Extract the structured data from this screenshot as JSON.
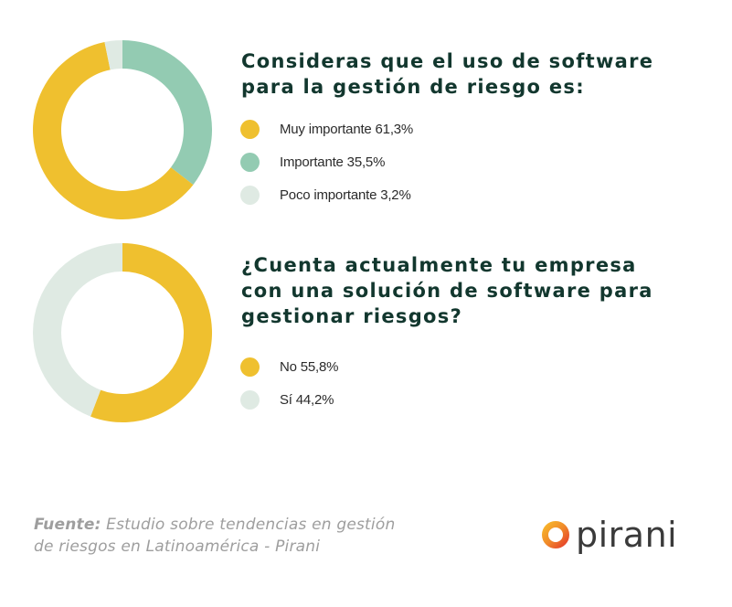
{
  "chart_data": [
    {
      "type": "pie",
      "variant": "donut",
      "title": "Consideras que el uso de software para la gestión de riesgo es:",
      "title_lines": [
        "Consideras que el uso de software",
        "para la gestión de riesgo es:"
      ],
      "categories": [
        "Muy importante",
        "Importante",
        "Poco importante"
      ],
      "values": [
        61.3,
        35.5,
        3.2
      ],
      "legend_labels": [
        "Muy importante 61,3%",
        "Importante 35,5%",
        "Poco importante 3,2%"
      ],
      "colors": [
        "#efc02f",
        "#93cbb2",
        "#dfeae3"
      ],
      "start_angle_deg": 0,
      "order": [
        "Importante",
        "Muy importante",
        "Poco importante"
      ]
    },
    {
      "type": "pie",
      "variant": "donut",
      "title": "¿Cuenta actualmente tu empresa con una solución de software para gestionar riesgos?",
      "title_lines": [
        "¿Cuenta actualmente tu empresa",
        "con una solución de software para",
        "gestionar riesgos?"
      ],
      "categories": [
        "No",
        "Sí"
      ],
      "values": [
        55.8,
        44.2
      ],
      "legend_labels": [
        "No 55,8%",
        "Sí 44,2%"
      ],
      "colors": [
        "#efc02f",
        "#dfeae3"
      ],
      "start_angle_deg": 0,
      "order": [
        "No",
        "Sí"
      ]
    }
  ],
  "footer": {
    "source_label": "Fuente:",
    "source_line1": " Estudio sobre tendencias en gestión",
    "source_line2": "de riesgos en Latinoamérica - Pirani"
  },
  "logo": {
    "text": "pirani",
    "colors": [
      "#f7b52a",
      "#f08a2a",
      "#e6422a"
    ]
  }
}
